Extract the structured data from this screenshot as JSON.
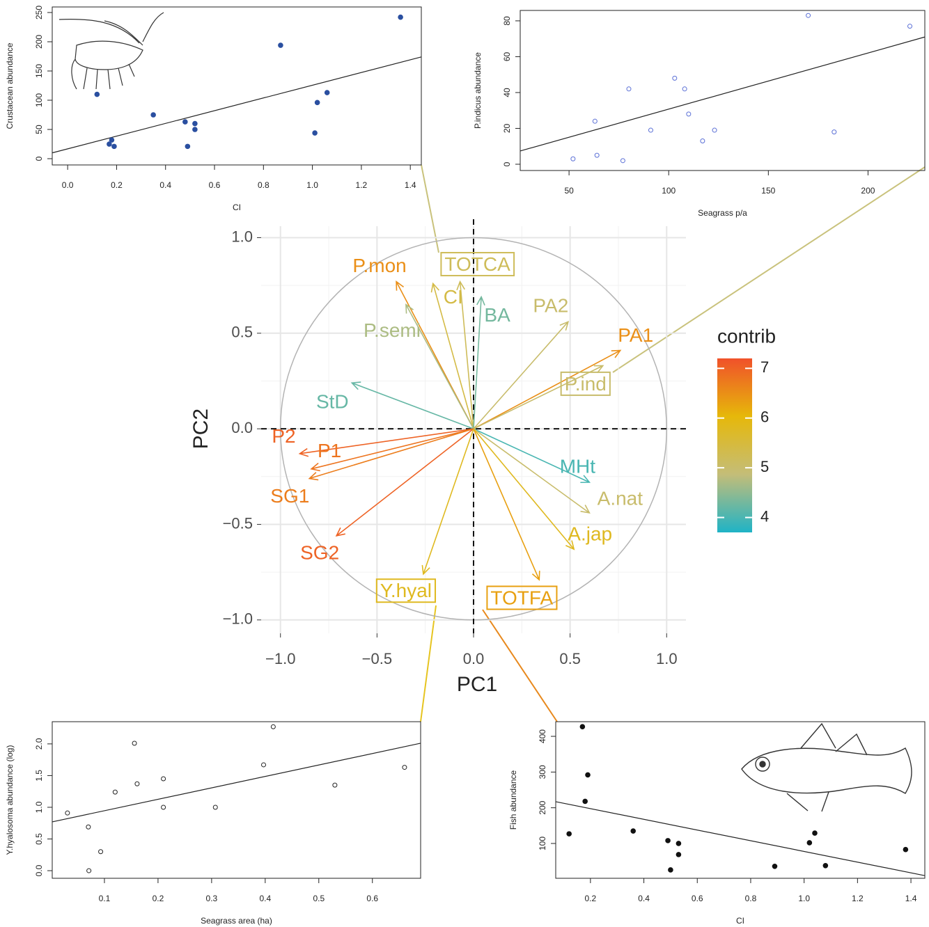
{
  "chart_data": [
    {
      "type": "scatter",
      "xlabel": "CI",
      "ylabel": "Crustacean abundance",
      "x": [
        0.12,
        0.17,
        0.18,
        0.19,
        0.35,
        0.48,
        0.49,
        0.52,
        0.52,
        0.87,
        1.01,
        1.02,
        1.06,
        1.36
      ],
      "values": [
        110,
        25,
        32,
        21,
        75,
        63,
        21,
        60,
        50,
        194,
        44,
        96,
        113,
        242
      ],
      "color": "#2a4fa0",
      "marker": "filled",
      "trend": {
        "x": [
          -0.063,
          1.445
        ],
        "y": [
          10,
          174
        ]
      },
      "xlim": [
        -0.063,
        1.445
      ],
      "ylim": [
        -10.7,
        259.5
      ],
      "xticks": [
        {
          "value": 0,
          "label": "0.0"
        },
        0.2,
        0.4,
        0.6,
        0.8,
        {
          "value": 1,
          "label": "1.0"
        },
        1.2,
        1.4
      ],
      "yticks": [
        0,
        50,
        100,
        150,
        200,
        250
      ]
    },
    {
      "type": "scatter",
      "xlabel": "Seagrass p/a",
      "ylabel": "P.indicus abundance",
      "x": [
        52,
        63,
        64,
        77,
        80,
        91,
        103,
        108,
        110,
        117,
        123,
        170,
        183,
        221
      ],
      "values": [
        3,
        24,
        5,
        2,
        42,
        19,
        48,
        42,
        28,
        13,
        19,
        83,
        18,
        77
      ],
      "color": "#5a6fd6",
      "marker": "open",
      "trend": {
        "x": [
          25.5,
          228.5
        ],
        "y": [
          7.4,
          71
        ]
      },
      "xlim": [
        25.5,
        228.5
      ],
      "ylim": [
        -3.5,
        85.8
      ],
      "xticks": [
        50,
        100,
        150,
        200
      ],
      "yticks": [
        0,
        20,
        40,
        60,
        80
      ]
    },
    {
      "type": "biplot",
      "xlabel": "PC1",
      "ylabel": "PC2",
      "xlim": [
        -1.1,
        1.1
      ],
      "ylim": [
        -1.07,
        1.06
      ],
      "xticks": [
        {
          "value": -1,
          "label": "−1.0"
        },
        {
          "value": -0.5,
          "label": "−0.5"
        },
        {
          "value": 0,
          "label": "0.0"
        },
        0.5,
        {
          "value": 1,
          "label": "1.0"
        }
      ],
      "yticks": [
        {
          "value": -1,
          "label": "−1.0"
        },
        {
          "value": -0.5,
          "label": "−0.5"
        },
        {
          "value": 0,
          "label": "0.0"
        },
        0.5,
        {
          "value": 1,
          "label": "1.0"
        }
      ],
      "xminor": [
        -0.75,
        -0.25,
        0.25,
        0.75
      ],
      "yminor": [
        -0.75,
        -0.25,
        0.25,
        0.75
      ],
      "grid": true,
      "variables": [
        {
          "name": "P.mon",
          "x": -0.4,
          "y": 0.77,
          "contrib": 6.5
        },
        {
          "name": "TOTCA",
          "x": -0.07,
          "y": 0.77,
          "contrib": 5.2,
          "boxed": true
        },
        {
          "name": "CI",
          "x": -0.21,
          "y": 0.76,
          "contrib": 5.4
        },
        {
          "name": "BA",
          "x": 0.04,
          "y": 0.69,
          "contrib": 4.3
        },
        {
          "name": "P.semi",
          "x": -0.35,
          "y": 0.65,
          "contrib": 4.7
        },
        {
          "name": "PA2",
          "x": 0.49,
          "y": 0.56,
          "contrib": 5.0
        },
        {
          "name": "PA1",
          "x": 0.76,
          "y": 0.41,
          "contrib": 6.5
        },
        {
          "name": "P.ind",
          "x": 0.67,
          "y": 0.33,
          "contrib": 5.0,
          "boxed": true
        },
        {
          "name": "StD",
          "x": -0.63,
          "y": 0.24,
          "contrib": 4.2
        },
        {
          "name": "P2",
          "x": -0.9,
          "y": -0.13,
          "contrib": 7.0
        },
        {
          "name": "P1",
          "x": -0.84,
          "y": -0.21,
          "contrib": 6.8
        },
        {
          "name": "SG1",
          "x": -0.85,
          "y": -0.26,
          "contrib": 6.7
        },
        {
          "name": "SG2",
          "x": -0.71,
          "y": -0.56,
          "contrib": 7.0
        },
        {
          "name": "MHt",
          "x": 0.6,
          "y": -0.28,
          "contrib": 4.0
        },
        {
          "name": "A.nat",
          "x": 0.6,
          "y": -0.44,
          "contrib": 5.0
        },
        {
          "name": "A.jap",
          "x": 0.52,
          "y": -0.63,
          "contrib": 5.8
        },
        {
          "name": "Y.hyal",
          "x": -0.26,
          "y": -0.76,
          "contrib": 5.8,
          "boxed": true
        },
        {
          "name": "TOTFA",
          "x": 0.34,
          "y": -0.79,
          "contrib": 6.3,
          "boxed": true
        }
      ],
      "legend": {
        "title": "contrib",
        "lim": [
          3.7,
          7.2
        ],
        "ticks": [
          4,
          5,
          6,
          7
        ],
        "colors": [
          "#1fb3c6",
          "#c4bd78",
          "#e6b80a",
          "#f0512a"
        ]
      }
    },
    {
      "type": "scatter",
      "xlabel": "Seagrass area (ha)",
      "ylabel": "Y.hyalosoma abundance (log)",
      "x": [
        0.031,
        0.07,
        0.071,
        0.093,
        0.12,
        0.156,
        0.161,
        0.21,
        0.21,
        0.307,
        0.397,
        0.415,
        0.53,
        0.66
      ],
      "values": [
        0.91,
        0.69,
        0,
        0.3,
        1.24,
        2.01,
        1.37,
        1.45,
        1.0,
        1.0,
        1.67,
        2.27,
        1.35,
        1.63
      ],
      "color": "#222222",
      "marker": "open",
      "trend": {
        "x": [
          0.0026,
          0.69
        ],
        "y": [
          0.77,
          2.01
        ]
      },
      "xlim": [
        0.0026,
        0.69
      ],
      "ylim": [
        -0.12,
        2.35
      ],
      "xticks": [
        0.1,
        0.2,
        0.3,
        0.4,
        0.5,
        0.6
      ],
      "yticks": [
        {
          "value": 0,
          "label": "0.0"
        },
        0.5,
        {
          "value": 1,
          "label": "1.0"
        },
        1.5,
        {
          "value": 2,
          "label": "2.0"
        }
      ]
    },
    {
      "type": "scatter",
      "xlabel": "CI",
      "ylabel": "Fish abundance",
      "x": [
        0.17,
        0.19,
        0.18,
        0.12,
        0.36,
        0.49,
        0.5,
        0.53,
        0.53,
        0.89,
        1.02,
        1.04,
        1.08,
        1.38
      ],
      "values": [
        427,
        292,
        218,
        127,
        135,
        108,
        26,
        100,
        69,
        36,
        102,
        129,
        38,
        83
      ],
      "color": "#111111",
      "marker": "filled",
      "trend": {
        "x": [
          0.07,
          1.452
        ],
        "y": [
          217,
          10
        ]
      },
      "xlim": [
        0.07,
        1.452
      ],
      "ylim": [
        2.5,
        441
      ],
      "xticks": [
        0.2,
        0.4,
        0.6,
        0.8,
        {
          "value": 1,
          "label": "1.0"
        },
        1.2,
        1.4
      ],
      "yticks": [
        100,
        200,
        300,
        400
      ]
    }
  ]
}
